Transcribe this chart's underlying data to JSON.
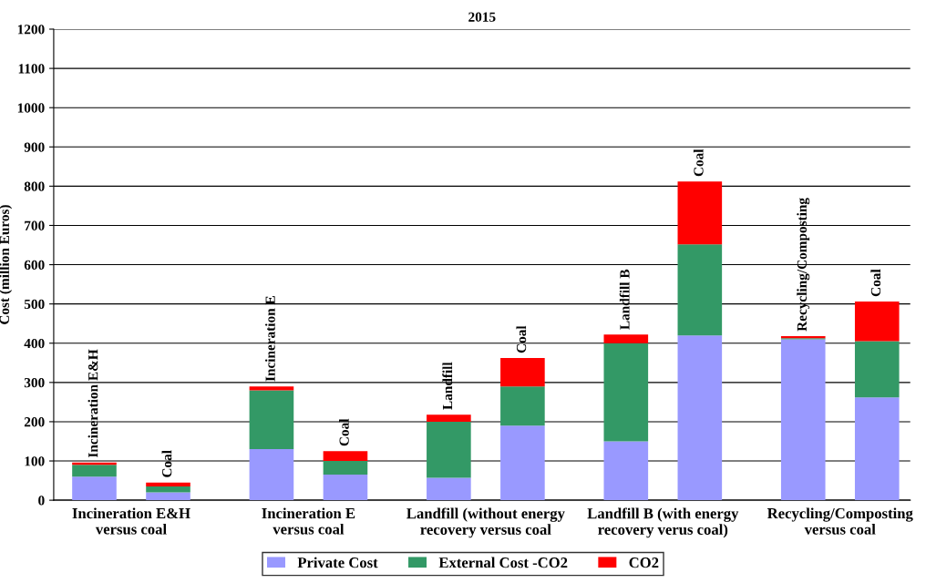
{
  "chart_data": {
    "type": "bar",
    "title": "2015",
    "ylabel": "Cost (million Euros)",
    "categories": [
      "Incineration E&H",
      "Coal",
      "Incineration E",
      "Coal",
      "Landfill",
      "Coal",
      "Landfill B",
      "Coal",
      "Recycling/Composting",
      "Coal"
    ],
    "stacked": true,
    "series": [
      {
        "name": "Private Cost",
        "color": "#9999ff",
        "values": [
          60,
          20,
          130,
          65,
          57,
          190,
          150,
          420,
          410,
          262
        ]
      },
      {
        "name": "External Cost -CO2",
        "color": "#339966",
        "values": [
          30,
          15,
          150,
          35,
          143,
          100,
          250,
          232,
          3,
          143
        ]
      },
      {
        "name": "CO2",
        "color": "#ff0000",
        "values": [
          6,
          10,
          10,
          25,
          18,
          72,
          22,
          160,
          5,
          101
        ]
      }
    ],
    "annotations": [
      "Incineration E&H\nversus coal",
      "Incineration E\nversus coal",
      "Landfill (without energy\nrecovery versus coal",
      "Landfill B (with energy\nrecovery verus coal)",
      "Recycling/Composting\nversus coal"
    ],
    "ylim": [
      0,
      1200
    ],
    "yticks": [
      0,
      100,
      200,
      300,
      400,
      500,
      600,
      700,
      800,
      900,
      1000,
      1100,
      1200
    ],
    "grid": "y",
    "legend": "bottom"
  }
}
